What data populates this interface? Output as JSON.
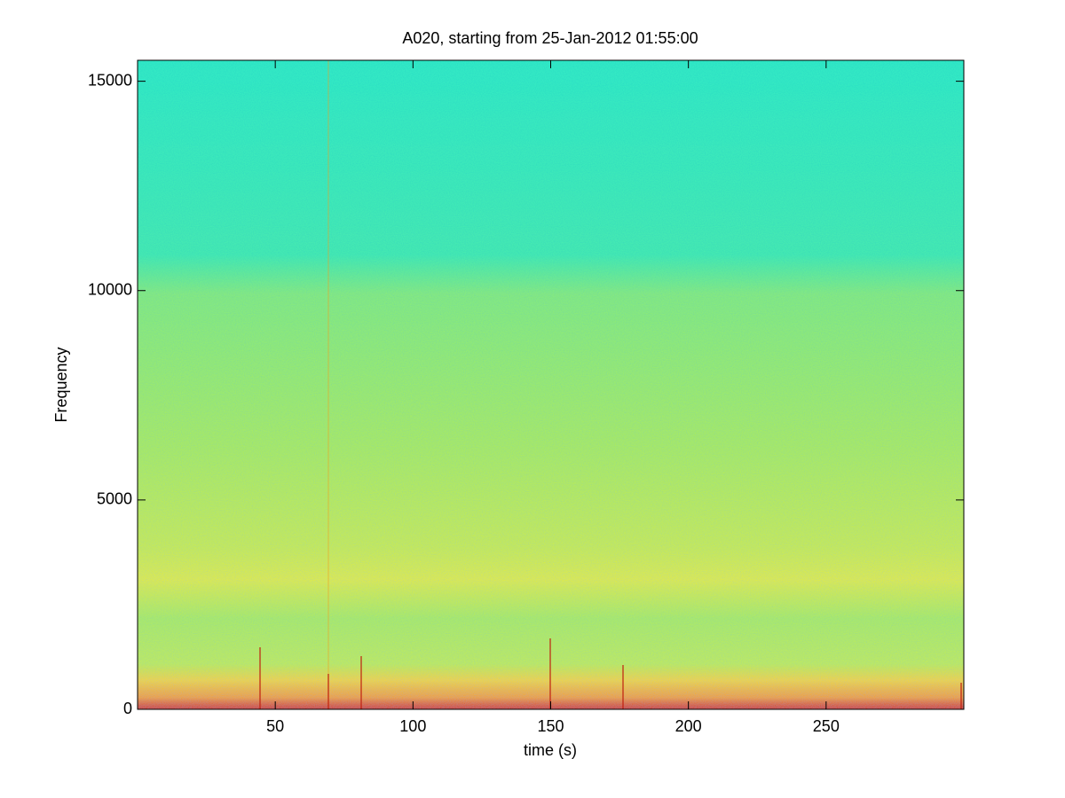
{
  "chart_data": {
    "type": "spectrogram",
    "title": "A020, starting from 25-Jan-2012 01:55:00",
    "x_label": "time (s)",
    "y_label": "Frequency",
    "xlim": [
      0,
      300
    ],
    "xticks": [
      50,
      100,
      150,
      200,
      250
    ],
    "ylim": [
      0,
      15500
    ],
    "yticks": [
      0,
      5000,
      10000,
      15000
    ]
  }
}
